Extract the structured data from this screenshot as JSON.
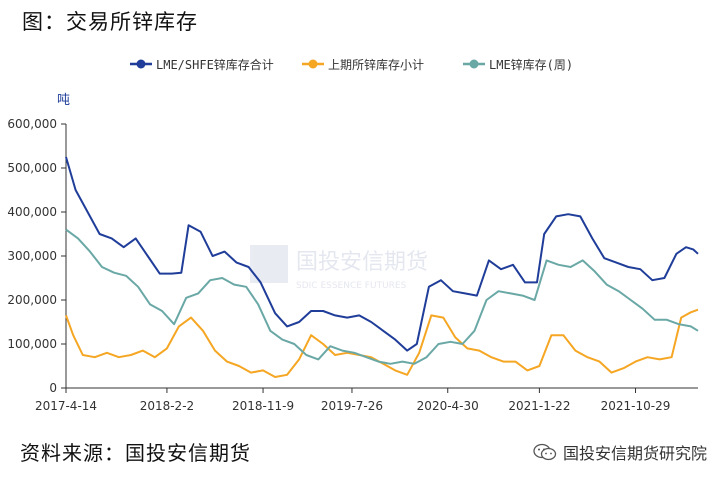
{
  "figure_title": "图：交易所锌库存",
  "source": "资料来源：国投安信期货",
  "footer_brand": "国投安信期货研究院",
  "watermark": {
    "cn": "国投安信期货",
    "en": "SDIC ESSENCE FUTURES"
  },
  "colors": {
    "lme_shfe_total": "#1f3d99",
    "shfe_total": "#f5a623",
    "lme": "#6aa8a6",
    "axis": "#333333"
  },
  "chart_data": {
    "type": "line",
    "ylabel": "吨",
    "ylim": [
      0,
      600000
    ],
    "yticks": [
      0,
      100000,
      200000,
      300000,
      400000,
      500000,
      600000
    ],
    "ytick_labels": [
      "0",
      "100,000",
      "200,000",
      "300,000",
      "400,000",
      "500,000",
      "600,000"
    ],
    "xlim": [
      "2017-04-14",
      "2022-04-29"
    ],
    "xticks": [
      "2017-4-14",
      "2018-2-2",
      "2018-11-9",
      "2019-7-26",
      "2020-4-30",
      "2021-1-22",
      "2021-10-29"
    ],
    "grid": false,
    "legend_position": "top",
    "series": [
      {
        "name": "LME/SHFE锌库存合计",
        "color": "#1f3d99",
        "points": [
          [
            "2017-04-14",
            525000
          ],
          [
            "2017-05-12",
            450000
          ],
          [
            "2017-06-16",
            400000
          ],
          [
            "2017-07-21",
            350000
          ],
          [
            "2017-08-25",
            340000
          ],
          [
            "2017-09-29",
            320000
          ],
          [
            "2017-11-03",
            340000
          ],
          [
            "2017-12-08",
            300000
          ],
          [
            "2018-01-12",
            260000
          ],
          [
            "2018-02-16",
            260000
          ],
          [
            "2018-03-16",
            262000
          ],
          [
            "2018-04-06",
            370000
          ],
          [
            "2018-05-11",
            355000
          ],
          [
            "2018-06-15",
            300000
          ],
          [
            "2018-07-20",
            310000
          ],
          [
            "2018-08-24",
            285000
          ],
          [
            "2018-09-28",
            275000
          ],
          [
            "2018-11-02",
            240000
          ],
          [
            "2018-12-14",
            170000
          ],
          [
            "2019-01-18",
            140000
          ],
          [
            "2019-02-22",
            150000
          ],
          [
            "2019-03-29",
            175000
          ],
          [
            "2019-05-03",
            175000
          ],
          [
            "2019-06-07",
            165000
          ],
          [
            "2019-07-12",
            160000
          ],
          [
            "2019-08-16",
            165000
          ],
          [
            "2019-09-20",
            150000
          ],
          [
            "2019-10-25",
            130000
          ],
          [
            "2019-11-29",
            110000
          ],
          [
            "2020-01-03",
            85000
          ],
          [
            "2020-01-31",
            100000
          ],
          [
            "2020-03-06",
            230000
          ],
          [
            "2020-04-10",
            245000
          ],
          [
            "2020-05-15",
            220000
          ],
          [
            "2020-06-19",
            215000
          ],
          [
            "2020-07-24",
            210000
          ],
          [
            "2020-08-28",
            290000
          ],
          [
            "2020-10-02",
            270000
          ],
          [
            "2020-11-06",
            280000
          ],
          [
            "2020-12-11",
            240000
          ],
          [
            "2021-01-15",
            240000
          ],
          [
            "2021-02-05",
            350000
          ],
          [
            "2021-03-12",
            390000
          ],
          [
            "2021-04-16",
            395000
          ],
          [
            "2021-05-21",
            390000
          ],
          [
            "2021-06-25",
            340000
          ],
          [
            "2021-07-30",
            295000
          ],
          [
            "2021-09-03",
            285000
          ],
          [
            "2021-10-08",
            275000
          ],
          [
            "2021-11-12",
            270000
          ],
          [
            "2021-12-17",
            245000
          ],
          [
            "2022-01-21",
            250000
          ],
          [
            "2022-02-25",
            305000
          ],
          [
            "2022-03-25",
            320000
          ],
          [
            "2022-04-15",
            315000
          ],
          [
            "2022-04-29",
            305000
          ]
        ]
      },
      {
        "name": "上期所锌库存小计",
        "color": "#f5a623",
        "points": [
          [
            "2017-04-14",
            165000
          ],
          [
            "2017-05-05",
            120000
          ],
          [
            "2017-06-02",
            75000
          ],
          [
            "2017-07-07",
            70000
          ],
          [
            "2017-08-11",
            80000
          ],
          [
            "2017-09-15",
            70000
          ],
          [
            "2017-10-20",
            75000
          ],
          [
            "2017-11-24",
            85000
          ],
          [
            "2017-12-29",
            70000
          ],
          [
            "2018-02-02",
            90000
          ],
          [
            "2018-03-09",
            140000
          ],
          [
            "2018-04-13",
            160000
          ],
          [
            "2018-05-18",
            130000
          ],
          [
            "2018-06-22",
            85000
          ],
          [
            "2018-07-27",
            60000
          ],
          [
            "2018-08-31",
            50000
          ],
          [
            "2018-10-05",
            35000
          ],
          [
            "2018-11-09",
            40000
          ],
          [
            "2018-12-14",
            25000
          ],
          [
            "2019-01-18",
            30000
          ],
          [
            "2019-02-22",
            65000
          ],
          [
            "2019-03-29",
            120000
          ],
          [
            "2019-05-03",
            100000
          ],
          [
            "2019-06-07",
            75000
          ],
          [
            "2019-07-12",
            80000
          ],
          [
            "2019-08-16",
            75000
          ],
          [
            "2019-09-20",
            70000
          ],
          [
            "2019-10-25",
            55000
          ],
          [
            "2019-11-29",
            40000
          ],
          [
            "2020-01-03",
            30000
          ],
          [
            "2020-02-07",
            80000
          ],
          [
            "2020-03-13",
            165000
          ],
          [
            "2020-04-17",
            160000
          ],
          [
            "2020-05-22",
            115000
          ],
          [
            "2020-06-26",
            90000
          ],
          [
            "2020-07-31",
            85000
          ],
          [
            "2020-09-04",
            70000
          ],
          [
            "2020-10-09",
            60000
          ],
          [
            "2020-11-13",
            60000
          ],
          [
            "2020-12-18",
            40000
          ],
          [
            "2021-01-22",
            50000
          ],
          [
            "2021-02-26",
            120000
          ],
          [
            "2021-04-02",
            120000
          ],
          [
            "2021-05-07",
            85000
          ],
          [
            "2021-06-11",
            70000
          ],
          [
            "2021-07-16",
            60000
          ],
          [
            "2021-08-20",
            35000
          ],
          [
            "2021-09-24",
            45000
          ],
          [
            "2021-10-29",
            60000
          ],
          [
            "2021-12-03",
            70000
          ],
          [
            "2022-01-07",
            65000
          ],
          [
            "2022-02-11",
            70000
          ],
          [
            "2022-03-11",
            160000
          ],
          [
            "2022-04-08",
            172000
          ],
          [
            "2022-04-29",
            178000
          ]
        ]
      },
      {
        "name": "LME锌库存(周)",
        "color": "#6aa8a6",
        "points": [
          [
            "2017-04-14",
            360000
          ],
          [
            "2017-05-19",
            340000
          ],
          [
            "2017-06-23",
            310000
          ],
          [
            "2017-07-28",
            275000
          ],
          [
            "2017-09-01",
            262000
          ],
          [
            "2017-10-06",
            255000
          ],
          [
            "2017-11-10",
            230000
          ],
          [
            "2017-12-15",
            190000
          ],
          [
            "2018-01-19",
            175000
          ],
          [
            "2018-02-23",
            145000
          ],
          [
            "2018-03-30",
            205000
          ],
          [
            "2018-05-04",
            215000
          ],
          [
            "2018-06-08",
            245000
          ],
          [
            "2018-07-13",
            250000
          ],
          [
            "2018-08-17",
            235000
          ],
          [
            "2018-09-21",
            230000
          ],
          [
            "2018-10-26",
            190000
          ],
          [
            "2018-11-30",
            130000
          ],
          [
            "2019-01-04",
            110000
          ],
          [
            "2019-02-08",
            100000
          ],
          [
            "2019-03-15",
            75000
          ],
          [
            "2019-04-19",
            65000
          ],
          [
            "2019-05-24",
            95000
          ],
          [
            "2019-06-28",
            85000
          ],
          [
            "2019-08-02",
            80000
          ],
          [
            "2019-09-06",
            70000
          ],
          [
            "2019-10-11",
            60000
          ],
          [
            "2019-11-15",
            55000
          ],
          [
            "2019-12-20",
            60000
          ],
          [
            "2020-01-24",
            55000
          ],
          [
            "2020-02-28",
            70000
          ],
          [
            "2020-04-03",
            100000
          ],
          [
            "2020-05-08",
            105000
          ],
          [
            "2020-06-12",
            100000
          ],
          [
            "2020-07-17",
            130000
          ],
          [
            "2020-08-21",
            200000
          ],
          [
            "2020-09-25",
            220000
          ],
          [
            "2020-10-30",
            215000
          ],
          [
            "2020-12-04",
            210000
          ],
          [
            "2021-01-08",
            200000
          ],
          [
            "2021-02-12",
            290000
          ],
          [
            "2021-03-19",
            280000
          ],
          [
            "2021-04-23",
            275000
          ],
          [
            "2021-05-28",
            290000
          ],
          [
            "2021-07-02",
            265000
          ],
          [
            "2021-08-06",
            235000
          ],
          [
            "2021-09-10",
            220000
          ],
          [
            "2021-10-15",
            200000
          ],
          [
            "2021-11-19",
            180000
          ],
          [
            "2021-12-24",
            155000
          ],
          [
            "2022-01-28",
            155000
          ],
          [
            "2022-03-04",
            145000
          ],
          [
            "2022-04-08",
            140000
          ],
          [
            "2022-04-29",
            130000
          ]
        ]
      }
    ]
  }
}
